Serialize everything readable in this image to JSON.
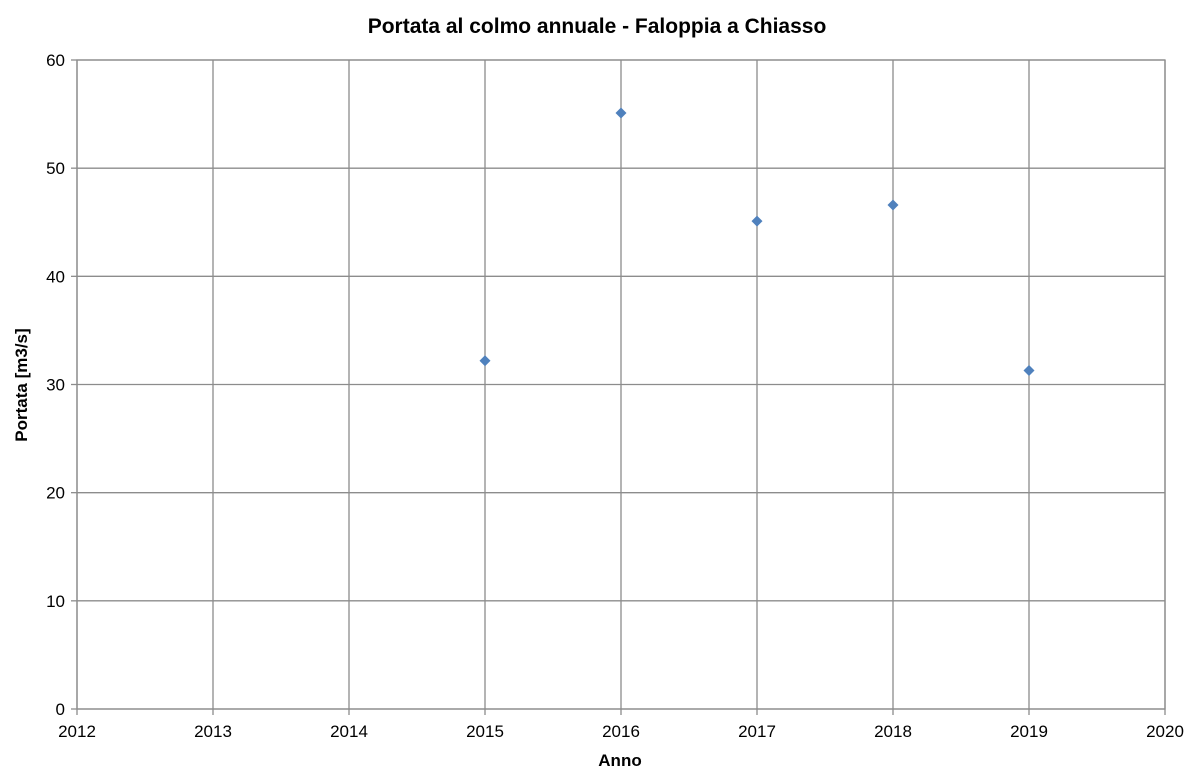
{
  "chart_data": {
    "type": "scatter",
    "title": "Portata al colmo annuale - Faloppia a Chiasso",
    "xlabel": "Anno",
    "ylabel": "Portata [m3/s]",
    "xlim": [
      2012,
      2020
    ],
    "ylim": [
      0,
      60
    ],
    "x_ticks": [
      2012,
      2013,
      2014,
      2015,
      2016,
      2017,
      2018,
      2019,
      2020
    ],
    "y_ticks": [
      0,
      10,
      20,
      30,
      40,
      50,
      60
    ],
    "grid": true,
    "legend": "none",
    "marker": "diamond",
    "marker_color": "#4f81bd",
    "points": [
      {
        "x": 2015,
        "y": 32.2
      },
      {
        "x": 2016,
        "y": 55.1
      },
      {
        "x": 2017,
        "y": 45.1
      },
      {
        "x": 2018,
        "y": 46.6
      },
      {
        "x": 2019,
        "y": 31.3
      }
    ]
  }
}
